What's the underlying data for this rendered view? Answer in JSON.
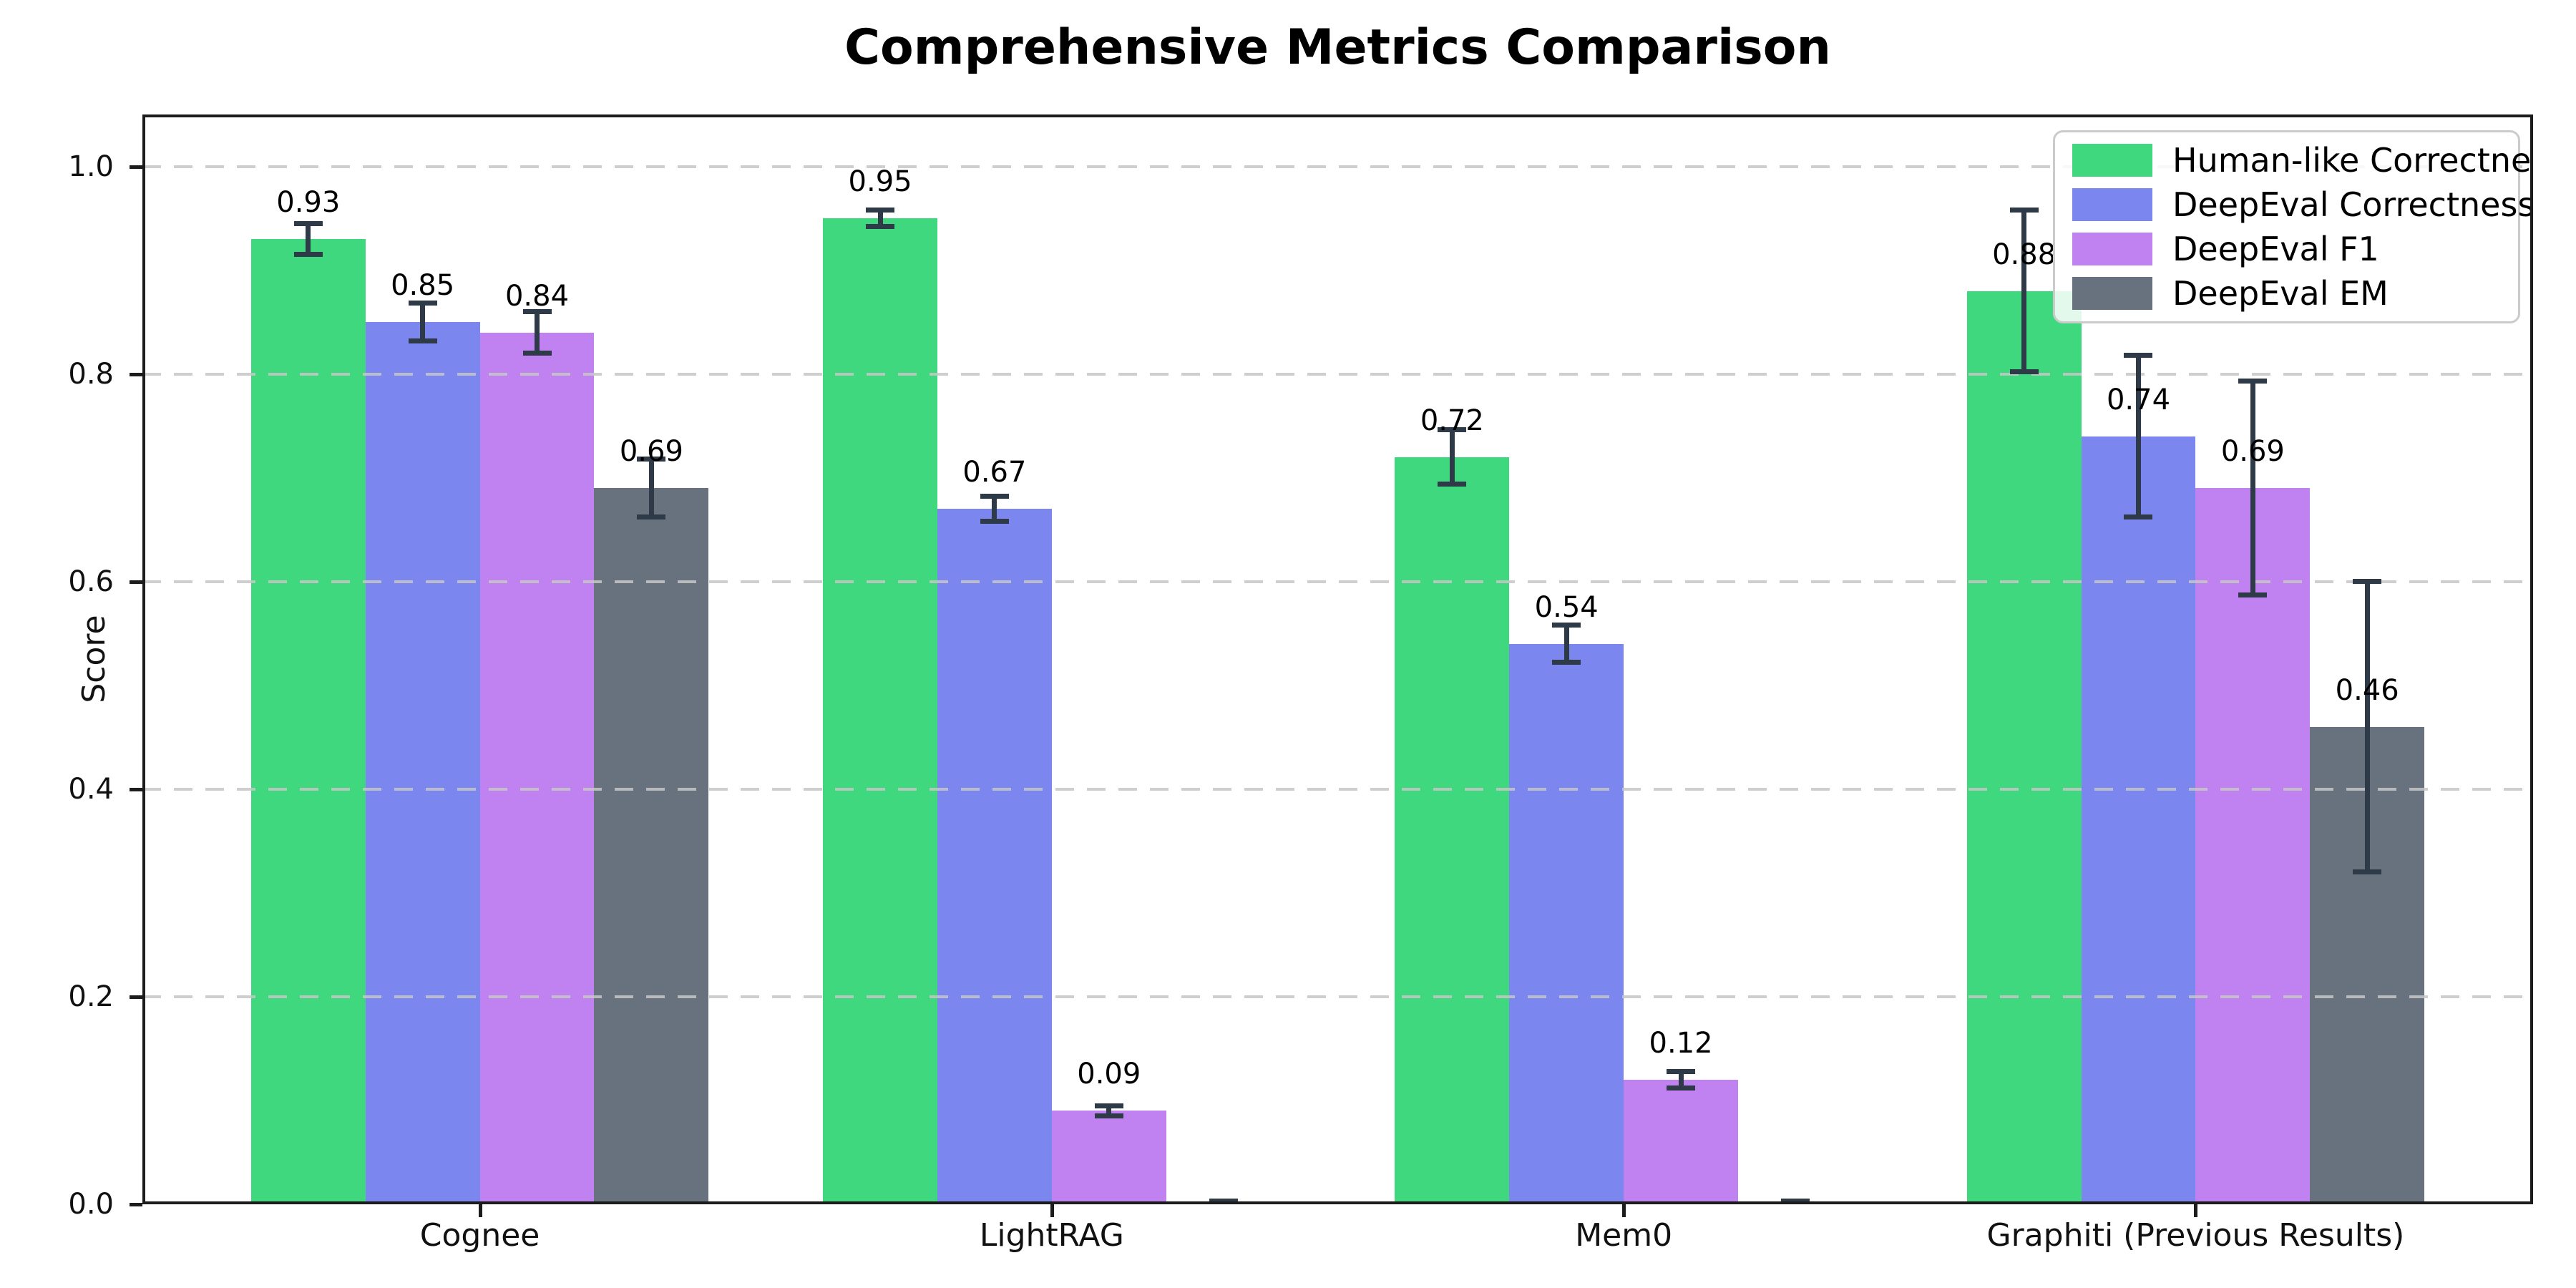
{
  "chart_data": {
    "type": "bar",
    "title": "Comprehensive Metrics Comparison",
    "ylabel": "Score",
    "categories": [
      "Cognee",
      "LightRAG",
      "Mem0",
      "Graphiti (Previous Results)"
    ],
    "series": [
      {
        "name": "Human-like Correctness",
        "color": "#40d87e",
        "values": [
          0.93,
          0.95,
          0.72,
          0.88
        ],
        "errors": [
          0.015,
          0.008,
          0.026,
          0.078
        ],
        "labels": [
          "0.93",
          "0.95",
          "0.72",
          "0.88"
        ]
      },
      {
        "name": "DeepEval Correctness",
        "color": "#7c86ef",
        "values": [
          0.85,
          0.67,
          0.54,
          0.74
        ],
        "errors": [
          0.018,
          0.012,
          0.018,
          0.078
        ],
        "labels": [
          "0.85",
          "0.67",
          "0.54",
          "0.74"
        ]
      },
      {
        "name": "DeepEval F1",
        "color": "#bf82f0",
        "values": [
          0.84,
          0.09,
          0.12,
          0.69
        ],
        "errors": [
          0.02,
          0.005,
          0.008,
          0.103
        ],
        "labels": [
          "0.84",
          "0.09",
          "0.12",
          "0.69"
        ]
      },
      {
        "name": "DeepEval EM",
        "color": "#68727e",
        "values": [
          0.69,
          0.0,
          0.0,
          0.46
        ],
        "errors": [
          0.028,
          0.003,
          0.003,
          0.14
        ],
        "labels": [
          "0.69",
          "",
          "",
          "0.46"
        ]
      }
    ],
    "yticks": [
      {
        "value": 0.0,
        "label": "0.0"
      },
      {
        "value": 0.2,
        "label": "0.2"
      },
      {
        "value": 0.4,
        "label": "0.4"
      },
      {
        "value": 0.6,
        "label": "0.6"
      },
      {
        "value": 0.8,
        "label": "0.8"
      },
      {
        "value": 1.0,
        "label": "1.0"
      }
    ],
    "ylim": [
      0,
      1.05
    ],
    "grid": "dashed-horizontal-over-bars",
    "legend_position": "upper right"
  },
  "colors": {
    "error_bar": "#2e3a47",
    "gridline": "#c6c6c6",
    "spine": "#1c1c1c",
    "legend_border": "#cbcbcb",
    "background": "#ffffff"
  }
}
